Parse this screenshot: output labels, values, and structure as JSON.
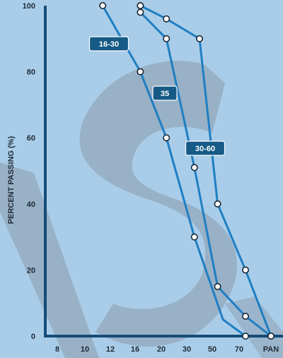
{
  "chart_data": {
    "type": "line",
    "title": "",
    "xlabel": "",
    "ylabel": "PERCENT PASSING (%)",
    "categories": [
      "8",
      "10",
      "12",
      "16",
      "20",
      "30",
      "50",
      "70",
      "PAN"
    ],
    "yticks": [
      0,
      20,
      40,
      60,
      80,
      100
    ],
    "ylim": [
      0,
      100
    ],
    "grid": false,
    "series": [
      {
        "name": "16-30",
        "points": [
          [
            1.7,
            100
          ],
          [
            3.2,
            80
          ],
          [
            4.2,
            60
          ],
          [
            5.3,
            30
          ],
          [
            6.4,
            5
          ],
          [
            7.2,
            0
          ]
        ]
      },
      {
        "name": "35",
        "points": [
          [
            3.2,
            100
          ],
          [
            3.2,
            98
          ],
          [
            4.2,
            90
          ],
          [
            5.3,
            51
          ],
          [
            6.2,
            15
          ],
          [
            7.2,
            6
          ],
          [
            8.9,
            0
          ]
        ]
      },
      {
        "name": "30-60",
        "points": [
          [
            3.2,
            100
          ],
          [
            4.2,
            96
          ],
          [
            5.5,
            90
          ],
          [
            6.2,
            40
          ],
          [
            7.2,
            20
          ],
          [
            8.9,
            0
          ]
        ]
      }
    ],
    "colors": {
      "line": "#1f7ec2",
      "badge": "#165a86",
      "frame": "#164b78",
      "watermark": "#8a9aa9"
    }
  }
}
